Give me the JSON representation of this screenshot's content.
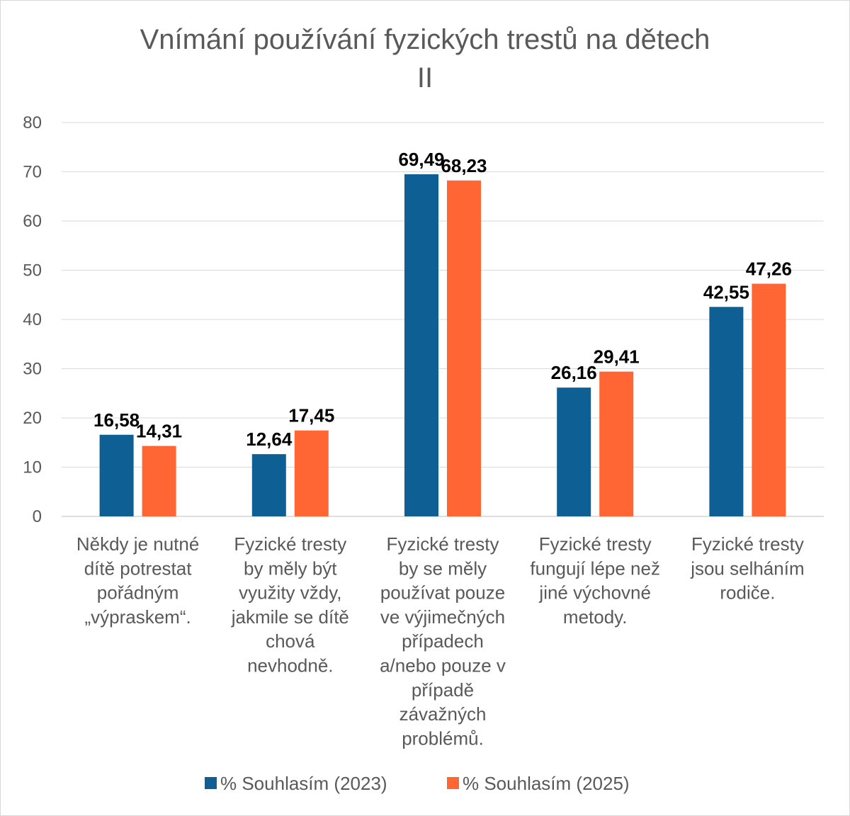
{
  "chart_data": {
    "type": "bar",
    "title": [
      "Vnímání používání fyzických trestů na dětech",
      "II"
    ],
    "xlabel": "",
    "ylabel": "",
    "ylim": [
      0,
      80
    ],
    "yticks": [
      0,
      10,
      20,
      30,
      40,
      50,
      60,
      70,
      80
    ],
    "grid": true,
    "legend_position": "bottom",
    "categories": [
      [
        "Někdy je nutné",
        "dítě potrestat",
        "pořádným",
        "„výpraskem“."
      ],
      [
        "Fyzické tresty",
        "by měly být",
        "využity vždy,",
        "jakmile se dítě",
        "chová",
        "nevhodně."
      ],
      [
        "Fyzické tresty",
        "by se měly",
        "používat pouze",
        "ve výjimečných",
        "případech",
        "a/nebo pouze v",
        "případě",
        "závažných",
        "problémů."
      ],
      [
        "Fyzické tresty",
        "fungují lépe než",
        "jiné výchovné",
        "metody."
      ],
      [
        "Fyzické tresty",
        "jsou selháním",
        "rodiče."
      ]
    ],
    "series": [
      {
        "name": "% Souhlasím (2023)",
        "color": "#0e5f93",
        "values": [
          16.58,
          12.64,
          69.49,
          26.16,
          42.55
        ],
        "labels": [
          "16,58",
          "12,64",
          "69,49",
          "26,16",
          "42,55"
        ]
      },
      {
        "name": "% Souhlasím (2025)",
        "color": "#ff6633",
        "values": [
          14.31,
          17.45,
          68.23,
          29.41,
          47.26
        ],
        "labels": [
          "14,31",
          "17,45",
          "68,23",
          "29,41",
          "47,26"
        ]
      }
    ]
  }
}
